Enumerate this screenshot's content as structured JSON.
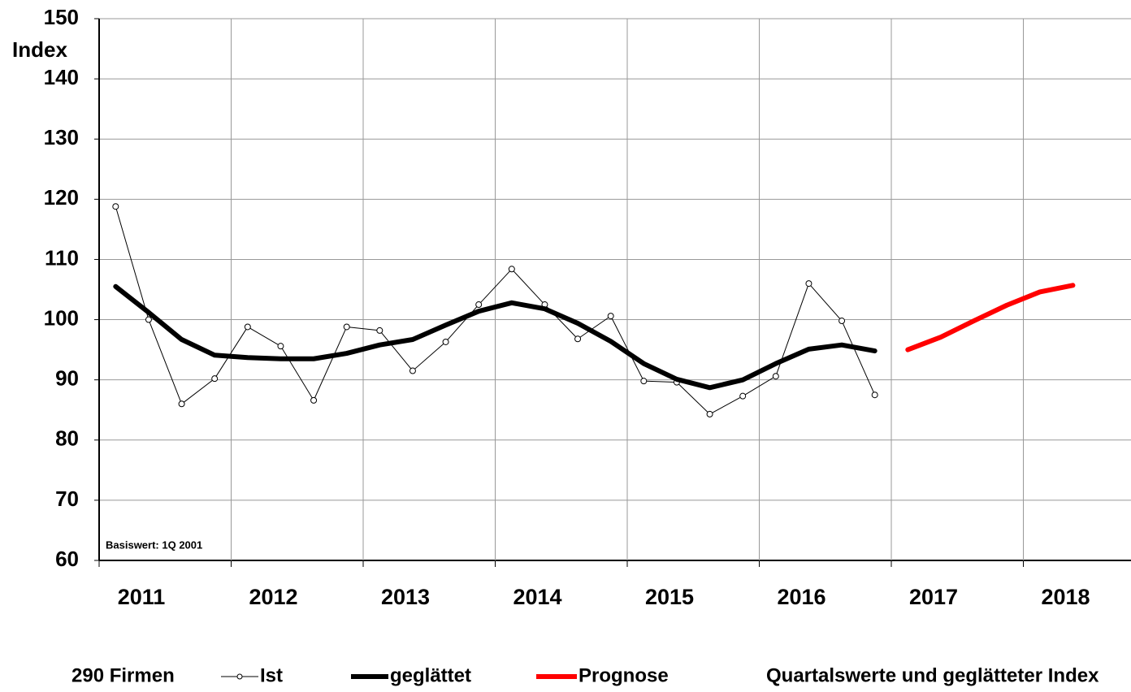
{
  "chart_data": {
    "type": "line",
    "y_label": "Index",
    "annotation": "Basiswert: 1Q 2001",
    "note": "290 Firmen",
    "subtitle": "Quartalswerte und geglätteter Index",
    "categories": [
      "2011",
      null,
      null,
      null,
      "2012",
      null,
      null,
      null,
      "2013",
      null,
      null,
      null,
      "2014",
      null,
      null,
      null,
      "2015",
      null,
      null,
      null,
      "2016",
      null,
      null,
      null,
      "2017",
      null,
      null,
      null,
      "2018",
      null,
      null,
      null
    ],
    "ylim": [
      60,
      150
    ],
    "yticks": [
      60,
      70,
      80,
      90,
      100,
      110,
      120,
      130,
      140,
      150
    ],
    "grid": true,
    "series": [
      {
        "name": "Ist",
        "color": "#000000",
        "marker": "circle",
        "values": [
          118.8,
          100,
          86,
          90.2,
          98.8,
          95.6,
          86.6,
          98.8,
          98.2,
          91.5,
          96.3,
          102.5,
          108.4,
          102.5,
          96.8,
          100.6,
          89.8,
          89.6,
          84.3,
          87.3,
          90.6,
          106,
          99.8,
          87.5,
          null,
          null,
          null,
          null,
          null,
          null,
          null,
          null
        ]
      },
      {
        "name": "geglättet",
        "color": "#000000",
        "values": [
          105.5,
          101.2,
          96.7,
          94.1,
          93.7,
          93.5,
          93.5,
          94.4,
          95.8,
          96.7,
          99.1,
          101.4,
          102.8,
          101.8,
          99.4,
          96.4,
          92.7,
          90.1,
          88.7,
          90,
          92.7,
          95.1,
          95.8,
          94.8,
          null,
          null,
          null,
          null,
          null,
          null,
          null,
          null
        ]
      },
      {
        "name": "Prognose",
        "color": "#ff0000",
        "values": [
          null,
          null,
          null,
          null,
          null,
          null,
          null,
          null,
          null,
          null,
          null,
          null,
          null,
          null,
          null,
          null,
          null,
          null,
          null,
          null,
          null,
          null,
          null,
          null,
          95,
          97.1,
          99.8,
          102.4,
          104.6,
          105.7,
          null,
          null
        ]
      }
    ]
  }
}
